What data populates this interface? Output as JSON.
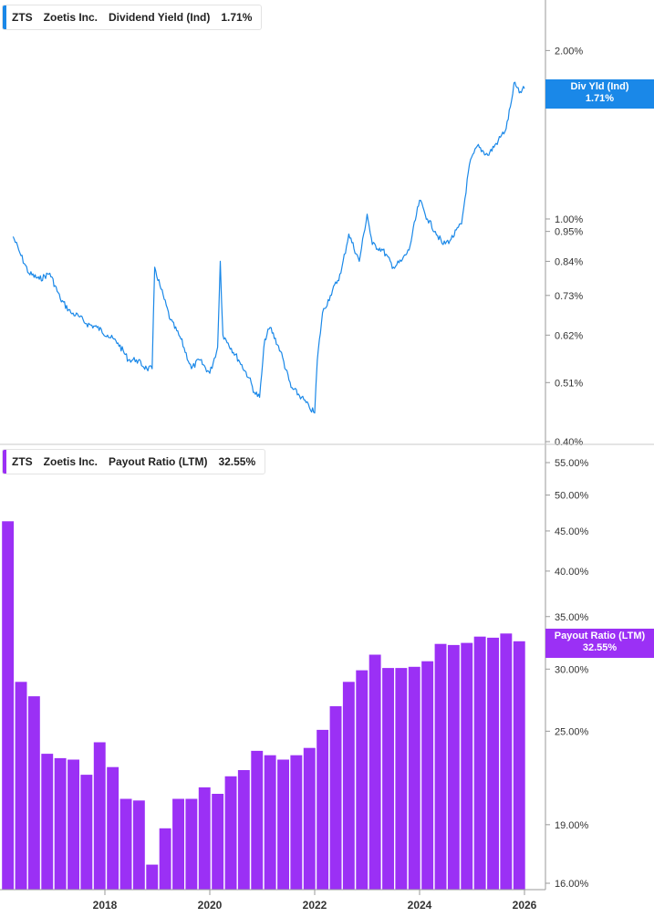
{
  "legends": {
    "top": {
      "ticker": "ZTS",
      "company": "Zoetis Inc.",
      "metric": "Dividend Yield (Ind)",
      "value": "1.71%"
    },
    "bottom": {
      "ticker": "ZTS",
      "company": "Zoetis Inc.",
      "metric": "Payout Ratio (LTM)",
      "value": "32.55%"
    }
  },
  "tags": {
    "top": {
      "label": "Div Yld (Ind)",
      "value": "1.71%"
    },
    "bottom": {
      "label": "Payout Ratio (LTM)",
      "value": "32.55%"
    }
  },
  "colors": {
    "yield": "#1a88e8",
    "payout": "#9b30f5",
    "axis": "#9a9a9a",
    "text": "#333333"
  },
  "chart_data": [
    {
      "type": "line",
      "title": "Dividend Yield (Ind)",
      "yscale": "log",
      "ylim": [
        0.4,
        2.2
      ],
      "yticks": [
        2.0,
        1.0,
        0.95,
        0.84,
        0.73,
        0.62,
        0.51,
        0.4
      ],
      "ytick_labels": [
        "2.00%",
        "1.00%",
        "0.95%",
        "0.84%",
        "0.73%",
        "0.62%",
        "0.51%",
        "0.40%"
      ],
      "series": [
        {
          "name": "Div Yld (Ind)",
          "x": [
            2016.25,
            2016.4,
            2016.55,
            2016.75,
            2016.95,
            2017.15,
            2017.35,
            2017.5,
            2017.65,
            2017.85,
            2018.05,
            2018.25,
            2018.45,
            2018.6,
            2018.8,
            2018.9,
            2018.95,
            2019.05,
            2019.25,
            2019.45,
            2019.65,
            2019.8,
            2020.0,
            2020.15,
            2020.2,
            2020.25,
            2020.35,
            2020.55,
            2020.75,
            2020.85,
            2020.95,
            2021.05,
            2021.15,
            2021.35,
            2021.55,
            2021.75,
            2021.9,
            2022.0,
            2022.05,
            2022.15,
            2022.3,
            2022.5,
            2022.65,
            2022.85,
            2023.0,
            2023.1,
            2023.3,
            2023.5,
            2023.65,
            2023.8,
            2024.0,
            2024.15,
            2024.3,
            2024.45,
            2024.6,
            2024.8,
            2024.95,
            2025.1,
            2025.3,
            2025.5,
            2025.65,
            2025.75,
            2025.8,
            2025.9,
            2026.0
          ],
          "values": [
            0.93,
            0.86,
            0.8,
            0.78,
            0.8,
            0.72,
            0.68,
            0.67,
            0.65,
            0.64,
            0.62,
            0.6,
            0.56,
            0.56,
            0.54,
            0.54,
            0.82,
            0.76,
            0.66,
            0.61,
            0.54,
            0.56,
            0.53,
            0.59,
            0.84,
            0.62,
            0.6,
            0.56,
            0.52,
            0.49,
            0.48,
            0.61,
            0.64,
            0.58,
            0.5,
            0.48,
            0.46,
            0.45,
            0.56,
            0.68,
            0.73,
            0.8,
            0.94,
            0.84,
            1.02,
            0.9,
            0.88,
            0.82,
            0.84,
            0.88,
            1.08,
            1.0,
            0.95,
            0.9,
            0.92,
            0.98,
            1.25,
            1.35,
            1.3,
            1.38,
            1.45,
            1.62,
            1.75,
            1.68,
            1.71
          ]
        }
      ]
    },
    {
      "type": "bar",
      "title": "Payout Ratio (LTM)",
      "yscale": "log",
      "ylim": [
        16.0,
        55.0
      ],
      "yticks": [
        55.0,
        50.0,
        45.0,
        40.0,
        35.0,
        30.0,
        25.0,
        19.0,
        16.0
      ],
      "ytick_labels": [
        "55.00%",
        "50.00%",
        "45.00%",
        "40.00%",
        "35.00%",
        "30.00%",
        "25.00%",
        "19.00%",
        "16.00%"
      ],
      "xlim": [
        2016.0,
        2026.4
      ],
      "xticks": [
        2018,
        2020,
        2022,
        2024,
        2026
      ],
      "xtick_labels": [
        "2018",
        "2020",
        "2022",
        "2024",
        "2026"
      ],
      "series": [
        {
          "name": "Payout Ratio (LTM)",
          "x": [
            2016.15,
            2016.4,
            2016.65,
            2016.9,
            2017.15,
            2017.4,
            2017.65,
            2017.9,
            2018.15,
            2018.4,
            2018.65,
            2018.9,
            2019.15,
            2019.4,
            2019.65,
            2019.9,
            2020.15,
            2020.4,
            2020.65,
            2020.9,
            2021.15,
            2021.4,
            2021.65,
            2021.9,
            2022.15,
            2022.4,
            2022.65,
            2022.9,
            2023.15,
            2023.4,
            2023.65,
            2023.9,
            2024.15,
            2024.4,
            2024.65,
            2024.9,
            2025.15,
            2025.4,
            2025.65,
            2025.9
          ],
          "values": [
            46.3,
            28.9,
            27.7,
            23.4,
            23.1,
            23.0,
            22.0,
            24.2,
            22.5,
            20.5,
            20.4,
            16.9,
            18.8,
            20.5,
            20.5,
            21.2,
            20.8,
            21.9,
            22.3,
            23.6,
            23.3,
            23.0,
            23.3,
            23.8,
            25.1,
            26.9,
            28.9,
            29.9,
            31.3,
            30.1,
            30.1,
            30.2,
            30.7,
            32.3,
            32.2,
            32.4,
            33.0,
            32.9,
            33.3,
            32.55
          ]
        }
      ]
    }
  ]
}
